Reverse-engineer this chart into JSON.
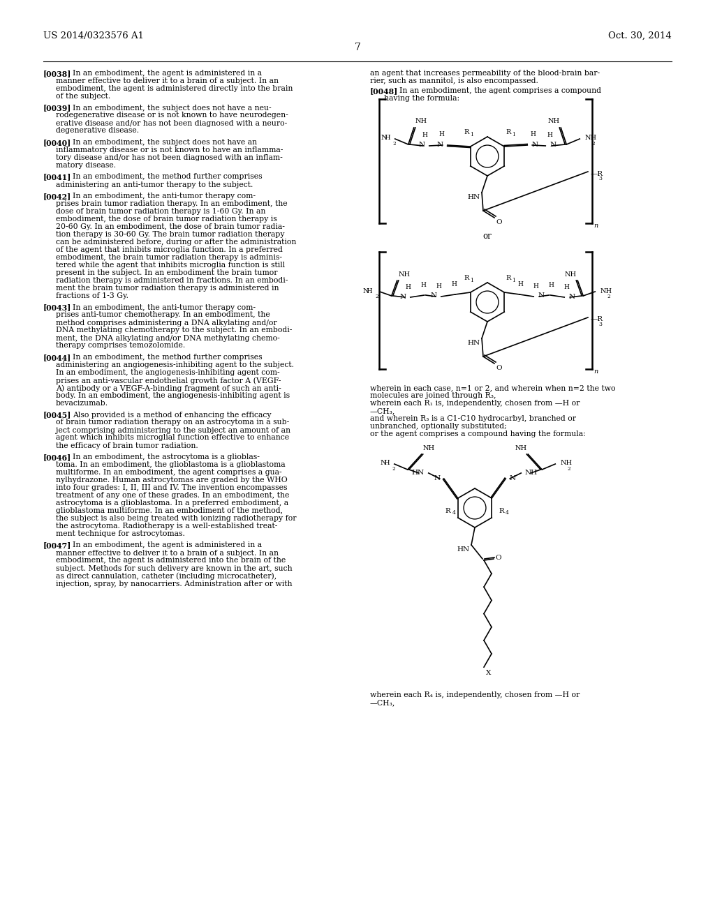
{
  "header_left": "US 2014/0323576 A1",
  "header_right": "Oct. 30, 2014",
  "page_number": "7",
  "bg_color": "#ffffff",
  "left_paragraphs": [
    {
      "tag": "[0038]",
      "lines": [
        "In an embodiment, the agent is administered in a",
        "manner effective to deliver it to a brain of a subject. In an",
        "embodiment, the agent is administered directly into the brain",
        "of the subject."
      ]
    },
    {
      "tag": "[0039]",
      "lines": [
        "In an embodiment, the subject does not have a neu-",
        "rodegenerative disease or is not known to have neurodegen-",
        "erative disease and/or has not been diagnosed with a neuro-",
        "degenerative disease."
      ]
    },
    {
      "tag": "[0040]",
      "lines": [
        "In an embodiment, the subject does not have an",
        "inflammatory disease or is not known to have an inflamma-",
        "tory disease and/or has not been diagnosed with an inflam-",
        "matory disease."
      ]
    },
    {
      "tag": "[0041]",
      "lines": [
        "In an embodiment, the method further comprises",
        "administering an anti-tumor therapy to the subject."
      ]
    },
    {
      "tag": "[0042]",
      "lines": [
        "In an embodiment, the anti-tumor therapy com-",
        "prises brain tumor radiation therapy. In an embodiment, the",
        "dose of brain tumor radiation therapy is 1-60 Gy. In an",
        "embodiment, the dose of brain tumor radiation therapy is",
        "20-60 Gy. In an embodiment, the dose of brain tumor radia-",
        "tion therapy is 30-60 Gy. The brain tumor radiation therapy",
        "can be administered before, during or after the administration",
        "of the agent that inhibits microglia function. In a preferred",
        "embodiment, the brain tumor radiation therapy is adminis-",
        "tered while the agent that inhibits microglia function is still",
        "present in the subject. In an embodiment the brain tumor",
        "radiation therapy is administered in fractions. In an embodi-",
        "ment the brain tumor radiation therapy is administered in",
        "fractions of 1-3 Gy."
      ]
    },
    {
      "tag": "[0043]",
      "lines": [
        "In an embodiment, the anti-tumor therapy com-",
        "prises anti-tumor chemotherapy. In an embodiment, the",
        "method comprises administering a DNA alkylating and/or",
        "DNA methylating chemotherapy to the subject. In an embodi-",
        "ment, the DNA alkylating and/or DNA methylating chemo-",
        "therapy comprises temozolomide."
      ]
    },
    {
      "tag": "[0044]",
      "lines": [
        "In an embodiment, the method further comprises",
        "administering an angiogenesis-inhibiting agent to the subject.",
        "In an embodiment, the angiogenesis-inhibiting agent com-",
        "prises an anti-vascular endothelial growth factor A (VEGF-",
        "A) antibody or a VEGF-A-binding fragment of such an anti-",
        "body. In an embodiment, the angiogenesis-inhibiting agent is",
        "bevacizumab."
      ]
    },
    {
      "tag": "[0045]",
      "lines": [
        "Also provided is a method of enhancing the efficacy",
        "of brain tumor radiation therapy on an astrocytoma in a sub-",
        "ject comprising administering to the subject an amount of an",
        "agent which inhibits microglial function effective to enhance",
        "the efficacy of brain tumor radiation."
      ]
    },
    {
      "tag": "[0046]",
      "lines": [
        "In an embodiment, the astrocytoma is a glioblas-",
        "toma. In an embodiment, the glioblastoma is a glioblastoma",
        "multiforme. In an embodiment, the agent comprises a gua-",
        "nylhydrazone. Human astrocytomas are graded by the WHO",
        "into four grades: I, II, III and IV. The invention encompasses",
        "treatment of any one of these grades. In an embodiment, the",
        "astrocytoma is a glioblastoma. In a preferred embodiment, a",
        "glioblastoma multiforme. In an embodiment of the method,",
        "the subject is also being treated with ionizing radiotherapy for",
        "the astrocytoma. Radiotherapy is a well-established treat-",
        "ment technique for astrocytomas."
      ]
    },
    {
      "tag": "[0047]",
      "lines": [
        "In an embodiment, the agent is administered in a",
        "manner effective to deliver it to a brain of a subject. In an",
        "embodiment, the agent is administered into the brain of the",
        "subject. Methods for such delivery are known in the art, such",
        "as direct cannulation, catheter (including microcatheter),",
        "injection, spray, by nanocarriers. Administration after or with"
      ]
    }
  ],
  "right_top_lines": [
    "an agent that increases permeability of the blood-brain bar-",
    "rier, such as mannitol, is also encompassed."
  ],
  "para48_tag": "[0048]",
  "para48_line1": "In an embodiment, the agent comprises a compound",
  "para48_line2": "having the formula:",
  "mid_text_lines": [
    "wherein in each case, n=1 or 2, and wherein when n=2 the two",
    "molecules are joined through R₃,",
    "wherein each R₁ is, independently, chosen from —H or",
    "—CH₃,",
    "and wherein R₃ is a C1-C10 hydrocarbyl, branched or",
    "unbranched, optionally substituted;",
    "or the agent comprises a compound having the formula:"
  ],
  "bottom_text_lines": [
    "wherein each R₄ is, independently, chosen from —H or",
    "—CH₃,"
  ]
}
